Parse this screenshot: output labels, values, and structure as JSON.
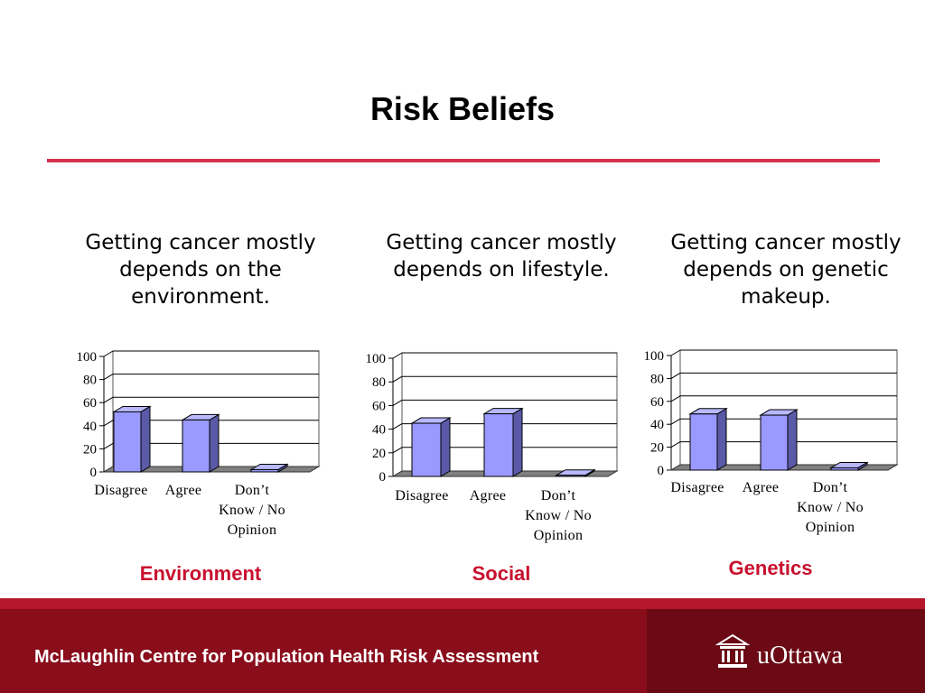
{
  "slide": {
    "title": "Risk Beliefs",
    "footer": "McLaughlin Centre for Population Health Risk Assessment",
    "logo_text": "uOttawa"
  },
  "panels": [
    {
      "statement": "Getting cancer mostly depends on the environment.",
      "caption": "Environment"
    },
    {
      "statement": "Getting cancer mostly depends on lifestyle.",
      "caption": "Social"
    },
    {
      "statement": "Getting cancer mostly depends on genetic makeup.",
      "caption": "Genetics"
    }
  ],
  "colors": {
    "bar_face": "#9999ff",
    "bar_side": "#5a5aa8",
    "bar_top": "#b8b8ff",
    "accent": "#c8102e"
  },
  "chart_data": [
    {
      "type": "bar",
      "categories": [
        "Disagree",
        "Agree",
        "Don’t Know / No Opinion"
      ],
      "category_lines": [
        [
          "Disagree"
        ],
        [
          "Agree"
        ],
        [
          "Don’t",
          "Know / No",
          "Opinion"
        ]
      ],
      "values": [
        52,
        45,
        2
      ],
      "yticks": [
        0,
        20,
        40,
        60,
        80,
        100
      ],
      "ylim": [
        0,
        100
      ],
      "grid": true
    },
    {
      "type": "bar",
      "categories": [
        "Disagree",
        "Agree",
        "Don’t Know / No Opinion"
      ],
      "category_lines": [
        [
          "Disagree"
        ],
        [
          "Agree"
        ],
        [
          "Don’t",
          "Know / No",
          "Opinion"
        ]
      ],
      "values": [
        45,
        53,
        1
      ],
      "yticks": [
        0,
        20,
        40,
        60,
        80,
        100
      ],
      "ylim": [
        0,
        100
      ],
      "grid": true
    },
    {
      "type": "bar",
      "categories": [
        "Disagree",
        "Agree",
        "Don’t Know / No Opinion"
      ],
      "category_lines": [
        [
          "Disagree"
        ],
        [
          "Agree"
        ],
        [
          "Don’t",
          "Know / No",
          "Opinion"
        ]
      ],
      "values": [
        49,
        48,
        2
      ],
      "yticks": [
        0,
        20,
        40,
        60,
        80,
        100
      ],
      "ylim": [
        0,
        100
      ],
      "grid": true
    }
  ]
}
